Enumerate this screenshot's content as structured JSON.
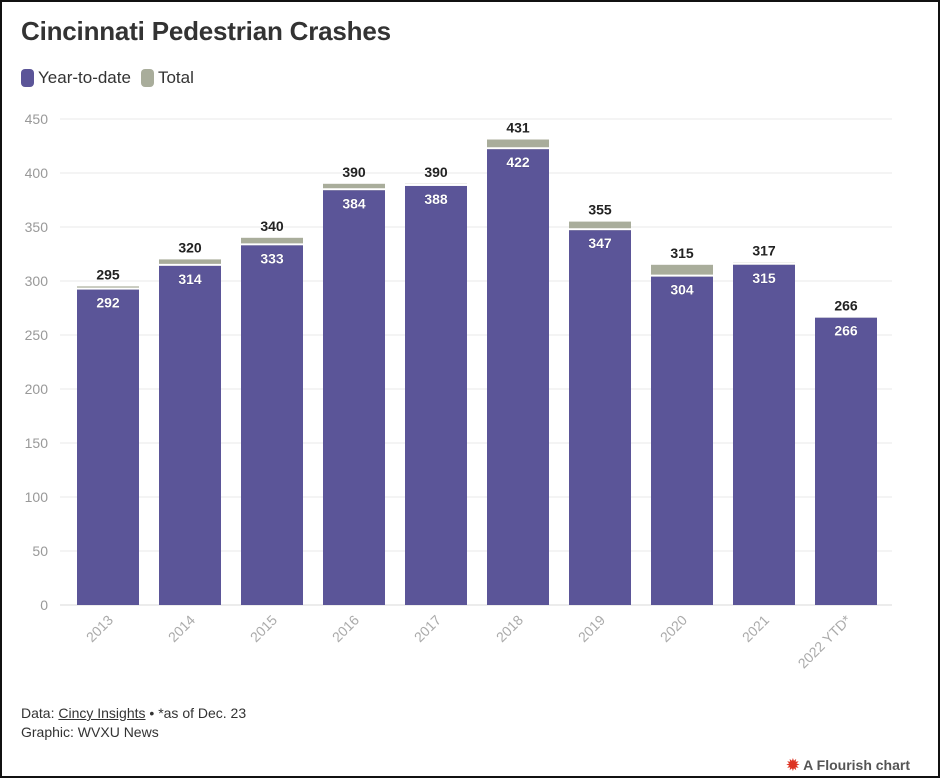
{
  "title": "Cincinnati Pedestrian Crashes",
  "legend": [
    {
      "label": "Year-to-date",
      "color": "#5b5598"
    },
    {
      "label": "Total",
      "color": "#a9ad9b"
    }
  ],
  "footer": {
    "data_prefix": "Data: ",
    "data_source": "Cincy Insights",
    "data_note": " • *as of Dec. 23",
    "graphic": "Graphic: WVXU News"
  },
  "branding": {
    "label": "A Flourish chart"
  },
  "chart_data": {
    "type": "bar",
    "stacked_overlay": true,
    "categories": [
      "2013",
      "2014",
      "2015",
      "2016",
      "2017",
      "2018",
      "2019",
      "2020",
      "2021",
      "2022 YTD*"
    ],
    "series": [
      {
        "name": "Year-to-date",
        "color": "#5b5598",
        "values": [
          292,
          314,
          333,
          384,
          388,
          422,
          347,
          304,
          315,
          266
        ]
      },
      {
        "name": "Total",
        "color": "#a9ad9b",
        "values": [
          295,
          320,
          340,
          390,
          390,
          431,
          355,
          315,
          317,
          266
        ]
      }
    ],
    "ylim": [
      0,
      450
    ],
    "yticks": [
      0,
      50,
      100,
      150,
      200,
      250,
      300,
      350,
      400,
      450
    ],
    "grid": true,
    "legend_position": "top-left",
    "xlabel": "",
    "ylabel": ""
  }
}
